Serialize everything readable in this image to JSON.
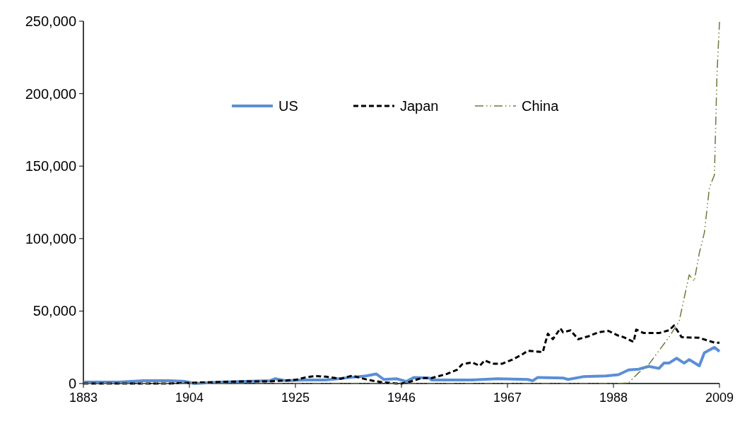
{
  "chart_data": {
    "type": "line",
    "xlim": [
      1883,
      2009
    ],
    "xticks": [
      1883,
      1904,
      1925,
      1946,
      1967,
      1988,
      2009
    ],
    "ylim": [
      0,
      250000
    ],
    "yticks": [
      {
        "value": 0,
        "label": "0"
      },
      {
        "value": 50000,
        "label": "50,000"
      },
      {
        "value": 100000,
        "label": "100,000"
      },
      {
        "value": 150000,
        "label": "150,000"
      },
      {
        "value": 200000,
        "label": "200,000"
      },
      {
        "value": 250000,
        "label": "250,000"
      }
    ],
    "grid": false,
    "legend": "top",
    "marker": "none",
    "series": [
      {
        "name": "US",
        "color": "#5b8fd6",
        "line_style": "solid",
        "x": [
          1883,
          1890,
          1895,
          1900,
          1903,
          1905,
          1910,
          1915,
          1920,
          1921,
          1923,
          1927,
          1931,
          1936,
          1939,
          1941,
          1942.5,
          1945,
          1947,
          1948.5,
          1951.5,
          1952,
          1960,
          1965,
          1971,
          1972,
          1973,
          1978,
          1979,
          1982,
          1986.5,
          1989,
          1991,
          1993,
          1995,
          1997,
          1998,
          1999,
          2000.5,
          2002,
          2003,
          2005,
          2006,
          2008,
          2009
        ],
        "values": [
          1000,
          1000,
          2000,
          2000,
          1500,
          0,
          1000,
          1500,
          2000,
          3300,
          2000,
          2400,
          2400,
          4200,
          5200,
          6600,
          2800,
          3300,
          1400,
          4200,
          3800,
          2400,
          2400,
          3300,
          2800,
          1900,
          4200,
          3800,
          2800,
          4700,
          5200,
          6100,
          9400,
          9900,
          11800,
          10400,
          14100,
          14100,
          17400,
          14100,
          16500,
          12200,
          21200,
          25000,
          22100
        ]
      },
      {
        "name": "Japan",
        "color": "#000000",
        "line_style": "dashed",
        "x": [
          1883,
          1900,
          1904,
          1910,
          1915,
          1920,
          1925,
          1927,
          1929,
          1931,
          1934,
          1936,
          1937,
          1939.5,
          1942,
          1945,
          1946,
          1947.5,
          1950,
          1952,
          1955,
          1957,
          1958,
          1960,
          1961.5,
          1962.5,
          1964,
          1966,
          1968,
          1970,
          1971,
          1974,
          1975,
          1976,
          1977.5,
          1978,
          1979.5,
          1981,
          1983,
          1985,
          1987,
          1989,
          1990,
          1992,
          1992.5,
          1994,
          1997,
          1999,
          2000,
          2001.5,
          2005,
          2008,
          2009
        ],
        "values": [
          0,
          0,
          500,
          1000,
          1500,
          1500,
          2500,
          4200,
          5200,
          4700,
          3300,
          5200,
          4700,
          2400,
          1000,
          0,
          0,
          1000,
          3800,
          3800,
          6600,
          9400,
          13200,
          14600,
          12200,
          16000,
          13700,
          13700,
          16500,
          20200,
          22600,
          21700,
          34400,
          30600,
          38100,
          35300,
          36700,
          30600,
          32500,
          35300,
          36300,
          33000,
          32000,
          28700,
          37200,
          34800,
          34800,
          36700,
          40000,
          32000,
          31500,
          28200,
          28200
        ]
      },
      {
        "name": "China",
        "color": "#6b7a3a",
        "line_style": "dashed",
        "x": [
          1883,
          1989,
          1991,
          1993,
          1995,
          1999,
          2001,
          2003,
          2004,
          2005,
          2006,
          2007,
          2008,
          2008.5,
          2009
        ],
        "values": [
          0,
          0,
          500,
          7500,
          13200,
          32000,
          42800,
          75000,
          70600,
          90000,
          104000,
          135000,
          144000,
          213000,
          249500
        ]
      }
    ]
  }
}
